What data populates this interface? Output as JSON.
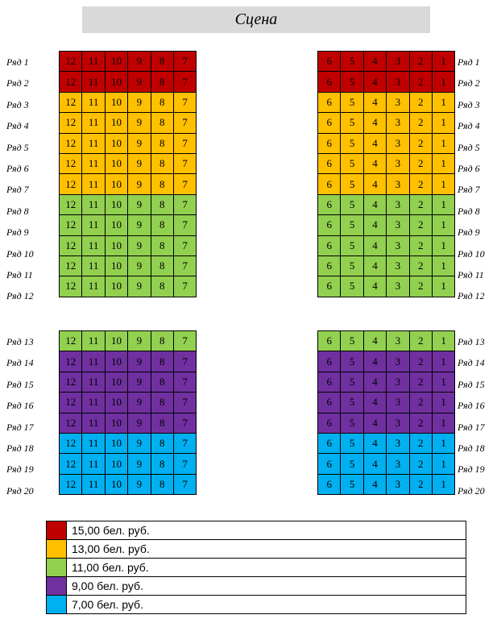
{
  "stage_label": "Сцена",
  "colors": {
    "red": "#c00000",
    "orange": "#ffc000",
    "green": "#92d050",
    "purple": "#7030a0",
    "blue": "#00b0f0"
  },
  "left_seats": [
    "12",
    "11",
    "10",
    "9",
    "8",
    "7"
  ],
  "right_seats": [
    "6",
    "5",
    "4",
    "3",
    "2",
    "1"
  ],
  "sections": [
    {
      "rows": [
        {
          "label": "Ряд 1",
          "color": "red"
        },
        {
          "label": "Ряд 2",
          "color": "red"
        },
        {
          "label": "Ряд 3",
          "color": "orange"
        },
        {
          "label": "Ряд 4",
          "color": "orange"
        },
        {
          "label": "Ряд 5",
          "color": "orange"
        },
        {
          "label": "Ряд 6",
          "color": "orange"
        },
        {
          "label": "Ряд 7",
          "color": "orange"
        },
        {
          "label": "Ряд 8",
          "color": "green"
        },
        {
          "label": "Ряд 9",
          "color": "green"
        },
        {
          "label": "Ряд 10",
          "color": "green"
        },
        {
          "label": "Ряд 11",
          "color": "green"
        },
        {
          "label": "Ряд 12",
          "color": "green"
        }
      ]
    },
    {
      "rows": [
        {
          "label": "Ряд 13",
          "color": "green"
        },
        {
          "label": "Ряд 14",
          "color": "purple"
        },
        {
          "label": "Ряд 15",
          "color": "purple"
        },
        {
          "label": "Ряд 16",
          "color": "purple"
        },
        {
          "label": "Ряд 17",
          "color": "purple"
        },
        {
          "label": "Ряд 18",
          "color": "blue"
        },
        {
          "label": "Ряд 19",
          "color": "blue"
        },
        {
          "label": "Ряд 20",
          "color": "blue"
        }
      ]
    }
  ],
  "legend": [
    {
      "color": "red",
      "label": "15,00 бел. руб."
    },
    {
      "color": "orange",
      "label": "13,00 бел. руб."
    },
    {
      "color": "green",
      "label": "11,00 бел. руб."
    },
    {
      "color": "purple",
      "label": "9,00 бел. руб."
    },
    {
      "color": "blue",
      "label": "7,00 бел. руб."
    }
  ]
}
